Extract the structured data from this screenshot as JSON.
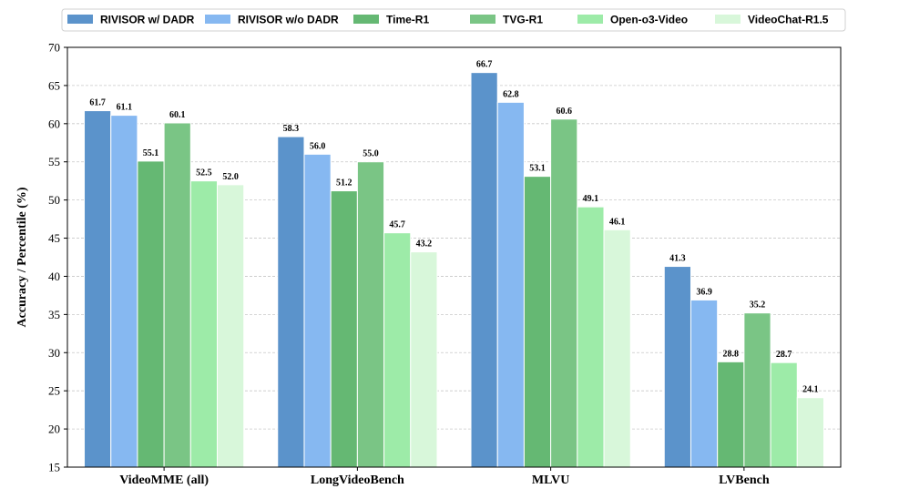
{
  "chart_data": {
    "type": "bar",
    "title": "",
    "xlabel": "",
    "ylabel": "Accuracy / Percentile (%)",
    "ylim": [
      15,
      70
    ],
    "yticks": [
      "15",
      "20",
      "25",
      "30",
      "35",
      "40",
      "45",
      "50",
      "55",
      "60",
      "65",
      "70"
    ],
    "grid": true,
    "legend_position": "top",
    "categories": [
      "VideoMME (all)",
      "LongVideoBench",
      "MLVU",
      "LVBench"
    ],
    "series": [
      {
        "name": "RIVISOR w/ DADR",
        "color": "#5b93cb",
        "values": [
          61.7,
          58.3,
          66.7,
          41.3
        ]
      },
      {
        "name": "RIVISOR w/o DADR",
        "color": "#86b8f1",
        "values": [
          61.1,
          56.0,
          62.8,
          36.9
        ]
      },
      {
        "name": "Time-R1",
        "color": "#65b873",
        "values": [
          55.1,
          51.2,
          53.1,
          28.8
        ]
      },
      {
        "name": "TVG-R1",
        "color": "#7ac585",
        "values": [
          60.1,
          55.0,
          60.6,
          35.2
        ]
      },
      {
        "name": "Open-o3-Video",
        "color": "#9deba8",
        "values": [
          52.5,
          45.7,
          49.1,
          28.7
        ]
      },
      {
        "name": "VideoChat-R1.5",
        "color": "#d8f7da",
        "values": [
          52.0,
          43.2,
          46.1,
          24.1
        ]
      }
    ],
    "value_labels": [
      [
        "61.7",
        "58.3",
        "66.7",
        "41.3"
      ],
      [
        "61.1",
        "56.0",
        "62.8",
        "36.9"
      ],
      [
        "55.1",
        "51.2",
        "53.1",
        "28.8"
      ],
      [
        "60.1",
        "55.0",
        "60.6",
        "35.2"
      ],
      [
        "52.5",
        "45.7",
        "49.1",
        "28.7"
      ],
      [
        "52.0",
        "43.2",
        "46.1",
        "24.1"
      ]
    ]
  }
}
